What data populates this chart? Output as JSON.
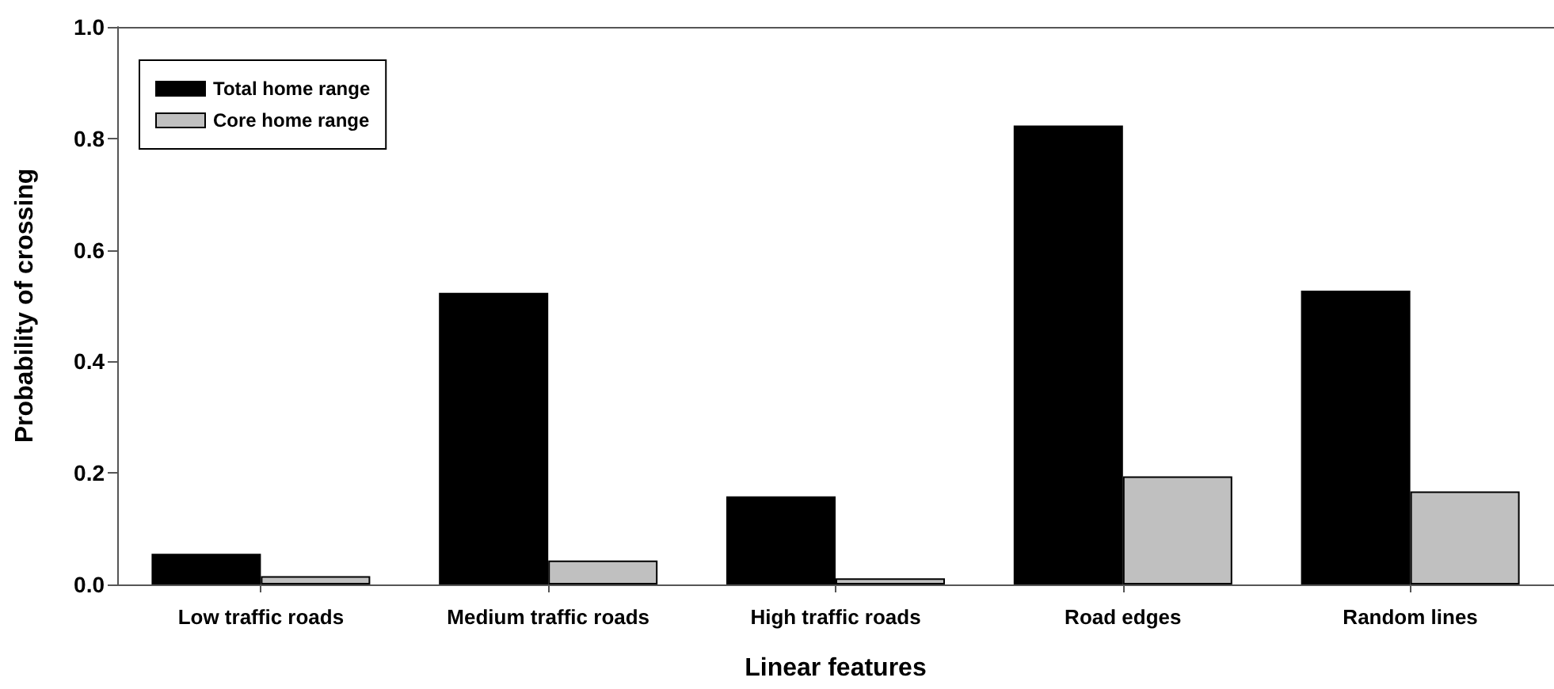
{
  "chart_data": {
    "type": "bar",
    "xlabel": "Linear features",
    "ylabel": "Probability of crossing",
    "categories": [
      "Low traffic roads",
      "Medium traffic roads",
      "High traffic roads",
      "Road edges",
      "Random lines"
    ],
    "series": [
      {
        "name": "Total home range",
        "color": "#000000",
        "values": [
          0.055,
          0.523,
          0.158,
          0.823,
          0.527
        ]
      },
      {
        "name": "Core home range",
        "color": "#c0c0c0",
        "values": [
          0.015,
          0.043,
          0.011,
          0.194,
          0.167
        ]
      }
    ],
    "ylim": [
      0,
      1
    ],
    "yticks": [
      {
        "value": 0,
        "label": "0.0"
      },
      0.2,
      0.4,
      0.6,
      0.8,
      {
        "value": 1,
        "label": "1.0"
      }
    ],
    "grid": false,
    "legend": "top left"
  }
}
